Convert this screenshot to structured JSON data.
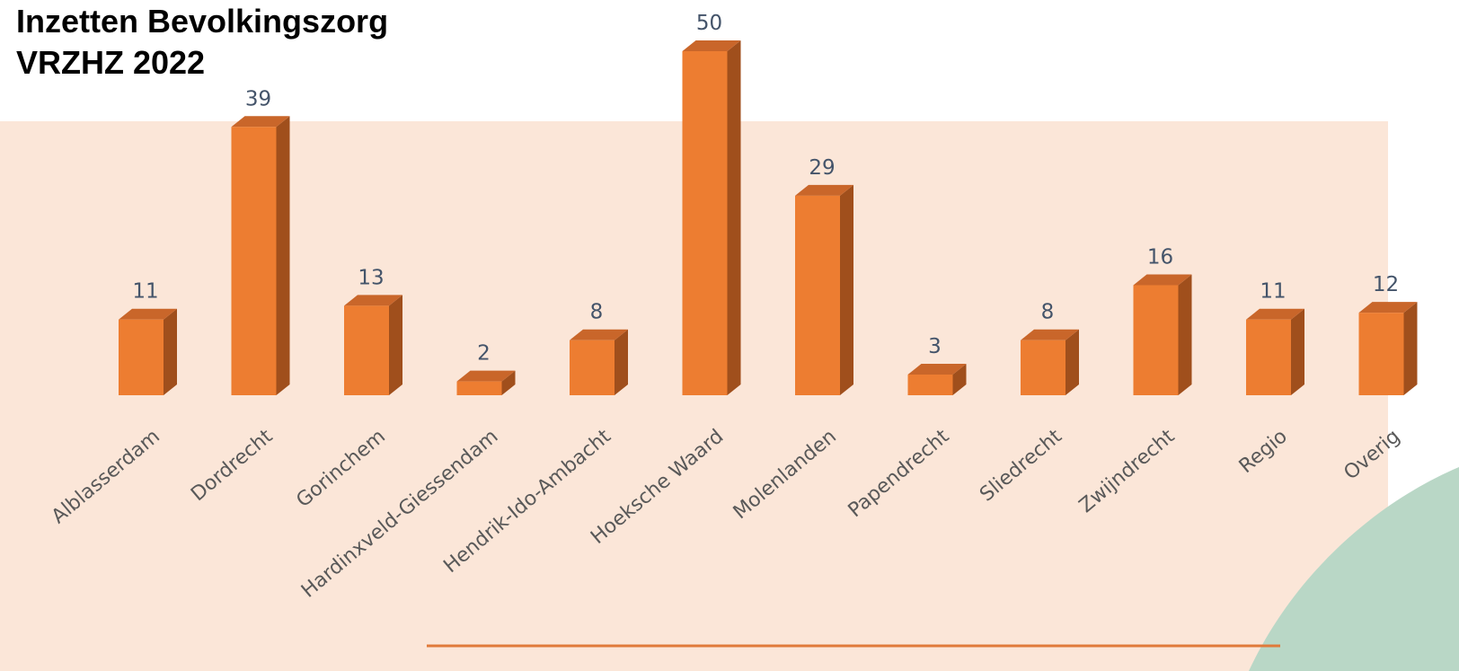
{
  "chart_data": {
    "type": "bar3d",
    "title": [
      "Inzetten Bevolkingszorg",
      "VRZHZ 2022"
    ],
    "categories": [
      "Alblasserdam",
      "Dordrecht",
      "Gorinchem",
      "Hardinxveld-Giessendam",
      "Hendrik-Ido-Ambacht",
      "Hoeksche Waard",
      "Molenlanden",
      "Papendrecht",
      "Sliedrecht",
      "Zwijndrecht",
      "Regio",
      "Overig"
    ],
    "values": [
      11,
      39,
      13,
      2,
      8,
      50,
      29,
      3,
      8,
      16,
      11,
      12
    ],
    "color": "#ed7d31"
  }
}
